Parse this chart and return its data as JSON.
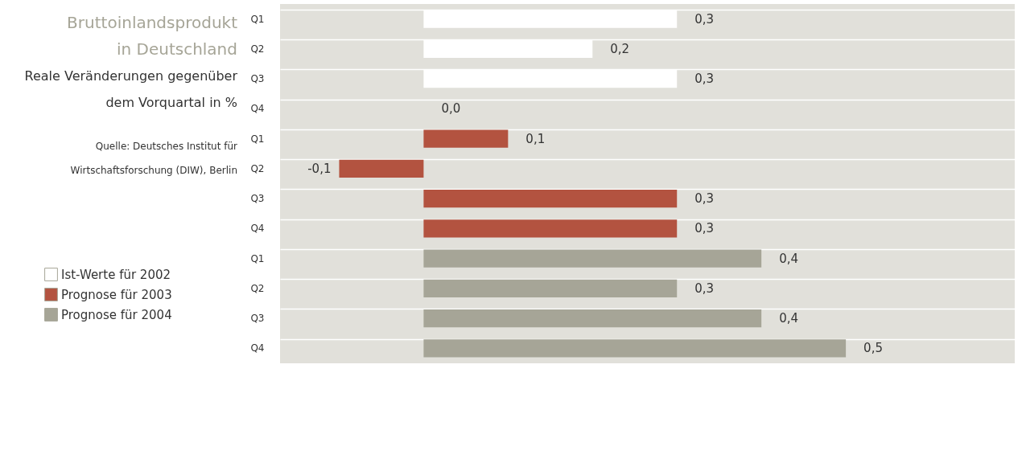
{
  "chart_data": {
    "type": "bar",
    "orientation": "horizontal",
    "title": "Bruttoinlandsprodukt\nin Deutschland",
    "subtitle": "Reale Veränderungen gegenüber\ndem Vorquartal in %",
    "annotations": [
      "Quelle: Deutsches Institut für\nWirtschaftsforschung (DIW), Berlin"
    ],
    "categories": [
      "Q1",
      "Q2",
      "Q3",
      "Q4",
      "Q1",
      "Q2",
      "Q3",
      "Q4",
      "Q1",
      "Q2",
      "Q3",
      "Q4"
    ],
    "xlim": [
      -0.17,
      0.7
    ],
    "series": [
      {
        "name": "Ist-Werte für 2002",
        "color": "#ffffff",
        "values": [
          0.3,
          0.2,
          0.3,
          0.0,
          null,
          null,
          null,
          null,
          null,
          null,
          null,
          null
        ],
        "value_labels": [
          "0,3",
          "0,2",
          "0,3",
          "0,0",
          null,
          null,
          null,
          null,
          null,
          null,
          null,
          null
        ]
      },
      {
        "name": "Prognose für 2003",
        "color": "#b35340",
        "values": [
          null,
          null,
          null,
          null,
          0.1,
          -0.1,
          0.3,
          0.3,
          null,
          null,
          null,
          null
        ],
        "value_labels": [
          null,
          null,
          null,
          null,
          "0,1",
          "-0,1",
          "0,3",
          "0,3",
          null,
          null,
          null,
          null
        ]
      },
      {
        "name": "Prognose für 2004",
        "color": "#a6a597",
        "values": [
          null,
          null,
          null,
          null,
          null,
          null,
          null,
          null,
          0.4,
          0.3,
          0.4,
          0.5
        ],
        "value_labels": [
          null,
          null,
          null,
          null,
          null,
          null,
          null,
          null,
          "0,4",
          "0,3",
          "0,4",
          "0,5"
        ]
      }
    ],
    "grid": "y",
    "legend": "bottom left"
  }
}
